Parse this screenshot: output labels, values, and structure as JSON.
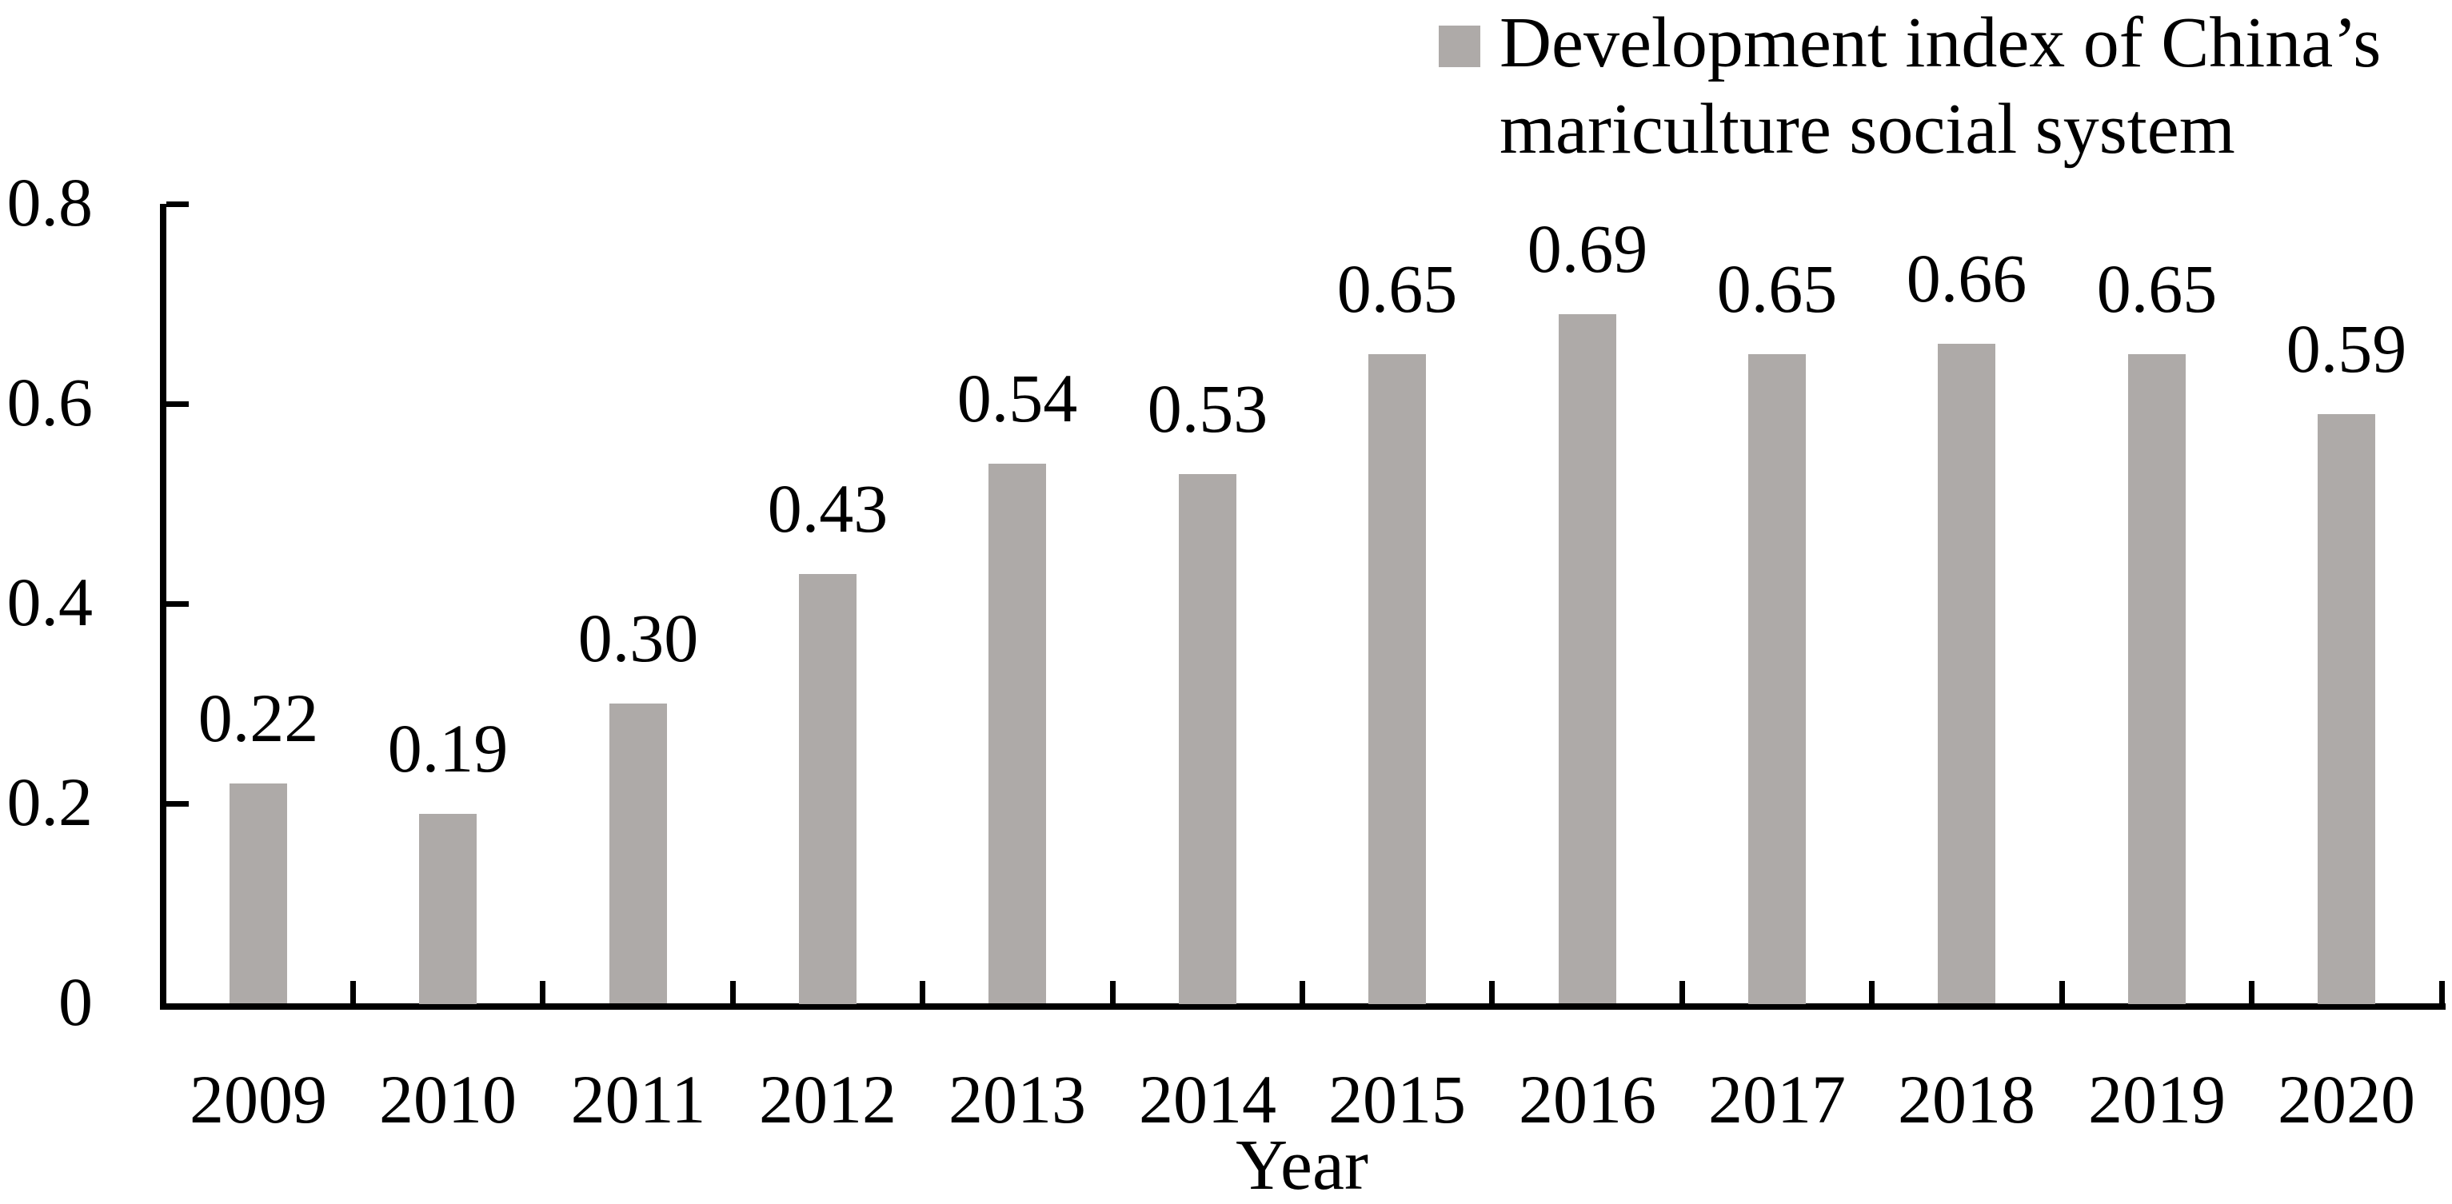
{
  "chart_data": {
    "type": "bar",
    "categories": [
      "2009",
      "2010",
      "2011",
      "2012",
      "2013",
      "2014",
      "2015",
      "2016",
      "2017",
      "2018",
      "2019",
      "2020"
    ],
    "values": [
      0.22,
      0.19,
      0.3,
      0.43,
      0.54,
      0.53,
      0.65,
      0.69,
      0.65,
      0.66,
      0.65,
      0.59
    ],
    "value_labels": [
      "0.22",
      "0.19",
      "0.30",
      "0.43",
      "0.54",
      "0.53",
      "0.65",
      "0.69",
      "0.65",
      "0.66",
      "0.65",
      "0.59"
    ],
    "title": "",
    "xlabel": "Year",
    "ylabel": "",
    "ylim": [
      0,
      0.8
    ],
    "yticks": [
      0,
      0.2,
      0.4,
      0.6,
      0.8
    ],
    "ytick_labels": [
      "0",
      "0.2",
      "0.4",
      "0.6",
      "0.8"
    ],
    "legend": {
      "label": "Development index of China’s mariculture social system",
      "lines": [
        "Development index of China’s",
        "mariculture social system"
      ],
      "position": "top-right"
    },
    "data_labels": true,
    "grid": false,
    "colors": {
      "bar": "#AEAAA8",
      "axis": "#000000",
      "text": "#000000",
      "background": "#FFFFFF"
    }
  }
}
